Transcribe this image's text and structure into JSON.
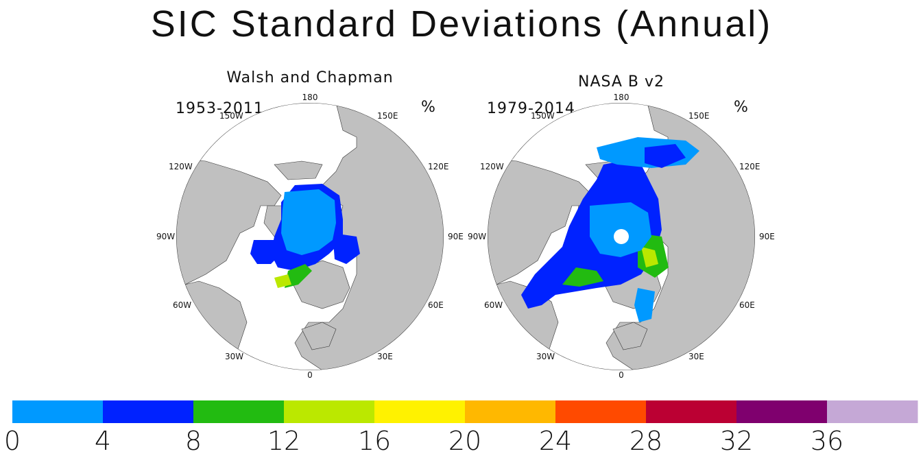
{
  "title": "SIC Standard Deviations (Annual)",
  "panels": [
    {
      "title": "Walsh and Chapman",
      "years": "1953-2011",
      "unit": "%"
    },
    {
      "title": "NASA B v2",
      "years": "1979-2014",
      "unit": "%"
    }
  ],
  "longitude_labels": [
    "180",
    "150E",
    "120E",
    "90E",
    "60E",
    "30E",
    "0",
    "30W",
    "60W",
    "90W",
    "120W",
    "150W"
  ],
  "colors": {
    "land": "#c0c0c0",
    "ocean": "#ffffff",
    "outline": "#333333"
  },
  "colorbar": {
    "ticks": [
      "0",
      "4",
      "8",
      "12",
      "16",
      "20",
      "24",
      "28",
      "32",
      "36"
    ],
    "colors": [
      "#0099ff",
      "#0022ff",
      "#22bb11",
      "#bbe800",
      "#fff200",
      "#ffb800",
      "#ff4a00",
      "#bb0033",
      "#7f006e",
      "#c5a8d6"
    ]
  }
}
